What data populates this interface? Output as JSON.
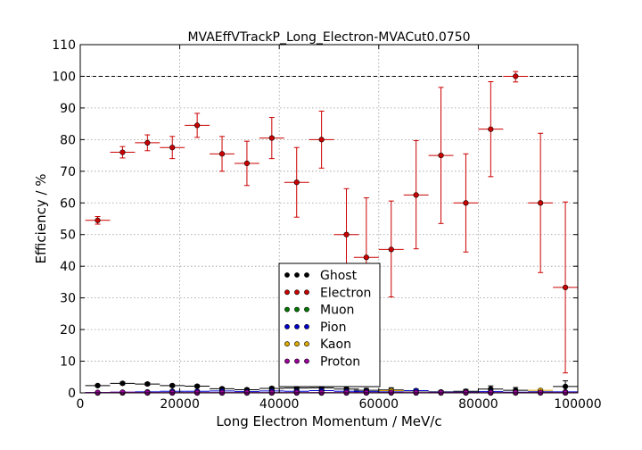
{
  "chart_data": {
    "type": "scatter",
    "title": "MVAEffVTrackP_Long_Electron-MVACut0.0750",
    "xlabel": "Long Electron Momentum / MeV/c",
    "ylabel": "Efficiency / %",
    "xlim": [
      0,
      100000
    ],
    "ylim": [
      0,
      110
    ],
    "xticks": [
      0,
      20000,
      40000,
      60000,
      80000,
      100000
    ],
    "xtick_labels": [
      "0",
      "20000",
      "40000",
      "60000",
      "80000",
      "100000"
    ],
    "yticks": [
      0,
      10,
      20,
      30,
      40,
      50,
      60,
      70,
      80,
      90,
      100,
      110
    ],
    "ytick_labels": [
      "0",
      "10",
      "20",
      "30",
      "40",
      "50",
      "60",
      "70",
      "80",
      "90",
      "100",
      "110"
    ],
    "grid": true,
    "reference_line": 100,
    "legend_position": "lower-center",
    "bin_half_width": 2500,
    "series": [
      {
        "name": "Ghost",
        "color": "#000000",
        "x": [
          3500,
          8500,
          13500,
          18500,
          23500,
          28500,
          33500,
          38500,
          43500,
          48500,
          53500,
          57500,
          62500,
          67500,
          72500,
          77500,
          82500,
          87500,
          92500,
          97500
        ],
        "y": [
          2.3,
          3.0,
          2.8,
          2.3,
          2.1,
          1.3,
          1.0,
          1.4,
          1.5,
          1.6,
          1.2,
          0.8,
          0.9,
          0.6,
          0.3,
          0.5,
          1.2,
          0.8,
          0.3,
          2.0
        ],
        "err": [
          0.3,
          0.4,
          0.4,
          0.4,
          0.4,
          0.4,
          0.4,
          0.5,
          0.6,
          0.7,
          0.7,
          0.6,
          0.7,
          0.6,
          0.4,
          0.6,
          1.0,
          0.9,
          0.5,
          1.8
        ]
      },
      {
        "name": "Electron",
        "color": "#cc0000",
        "x": [
          3500,
          8500,
          13500,
          18500,
          23500,
          28500,
          33500,
          38500,
          43500,
          48500,
          53500,
          57500,
          62500,
          67500,
          72500,
          77500,
          82500,
          87500,
          92500,
          97500
        ],
        "y": [
          54.5,
          76.0,
          79.0,
          77.5,
          84.5,
          75.5,
          72.5,
          80.5,
          66.5,
          80.0,
          50.0,
          42.8,
          45.3,
          62.5,
          75.0,
          60.0,
          83.3,
          100.0,
          60.0,
          33.3
        ],
        "err_lo": [
          1.2,
          1.8,
          2.5,
          3.5,
          3.8,
          5.5,
          7.0,
          6.5,
          11.0,
          9.0,
          14.5,
          18.8,
          15.0,
          17.0,
          21.5,
          15.5,
          15.0,
          1.8,
          22.0,
          27.0
        ],
        "err_hi": [
          1.2,
          1.8,
          2.5,
          3.5,
          3.8,
          5.5,
          7.0,
          6.5,
          11.0,
          9.0,
          14.5,
          18.8,
          15.3,
          17.2,
          21.5,
          15.5,
          15.0,
          1.5,
          22.0,
          27.0
        ]
      },
      {
        "name": "Muon",
        "color": "#007700",
        "x": [
          3500,
          8500,
          13500,
          18500,
          23500,
          28500,
          33500,
          38500,
          43500,
          48500,
          53500,
          57500,
          62500,
          67500,
          72500,
          77500,
          82500,
          87500,
          92500,
          97500
        ],
        "y": [
          0,
          0,
          0,
          0,
          0,
          0,
          0,
          0,
          0,
          0,
          0,
          0,
          0,
          0,
          0,
          0,
          0,
          0,
          0,
          0
        ]
      },
      {
        "name": "Pion",
        "color": "#0000cc",
        "x": [
          3500,
          8500,
          13500,
          18500,
          23500,
          28500,
          33500,
          38500,
          43500,
          48500,
          53500,
          57500,
          62500,
          67500,
          72500,
          77500,
          82500,
          87500,
          92500,
          97500
        ],
        "y": [
          0.1,
          0.2,
          0.3,
          0.5,
          0.5,
          0.6,
          0.4,
          0.6,
          0.5,
          0.7,
          0.5,
          0.4,
          0.3,
          0.7,
          0.2,
          0.2,
          0.4,
          0.2,
          0.3,
          0.3
        ]
      },
      {
        "name": "Kaon",
        "color": "#ddaa00",
        "x": [
          3500,
          8500,
          13500,
          18500,
          23500,
          28500,
          33500,
          38500,
          43500,
          48500,
          53500,
          57500,
          62500,
          67500,
          72500,
          77500,
          82500,
          87500,
          92500,
          97500
        ],
        "y": [
          0,
          0,
          0,
          0,
          0,
          0,
          0,
          0,
          0,
          0,
          0,
          0,
          0.7,
          0,
          0,
          0,
          0,
          0,
          0.8,
          0
        ]
      },
      {
        "name": "Proton",
        "color": "#990099",
        "x": [
          3500,
          8500,
          13500,
          18500,
          23500,
          28500,
          33500,
          38500,
          43500,
          48500,
          53500,
          57500,
          62500,
          67500,
          72500,
          77500,
          82500,
          87500,
          92500,
          97500
        ],
        "y": [
          0.1,
          0.2,
          0.1,
          0.1,
          0.1,
          0.1,
          0.1,
          0.1,
          0.1,
          0.1,
          0.1,
          0.1,
          0.1,
          0.1,
          0.1,
          0.1,
          0.1,
          0.1,
          0.1,
          0.1
        ]
      }
    ]
  }
}
